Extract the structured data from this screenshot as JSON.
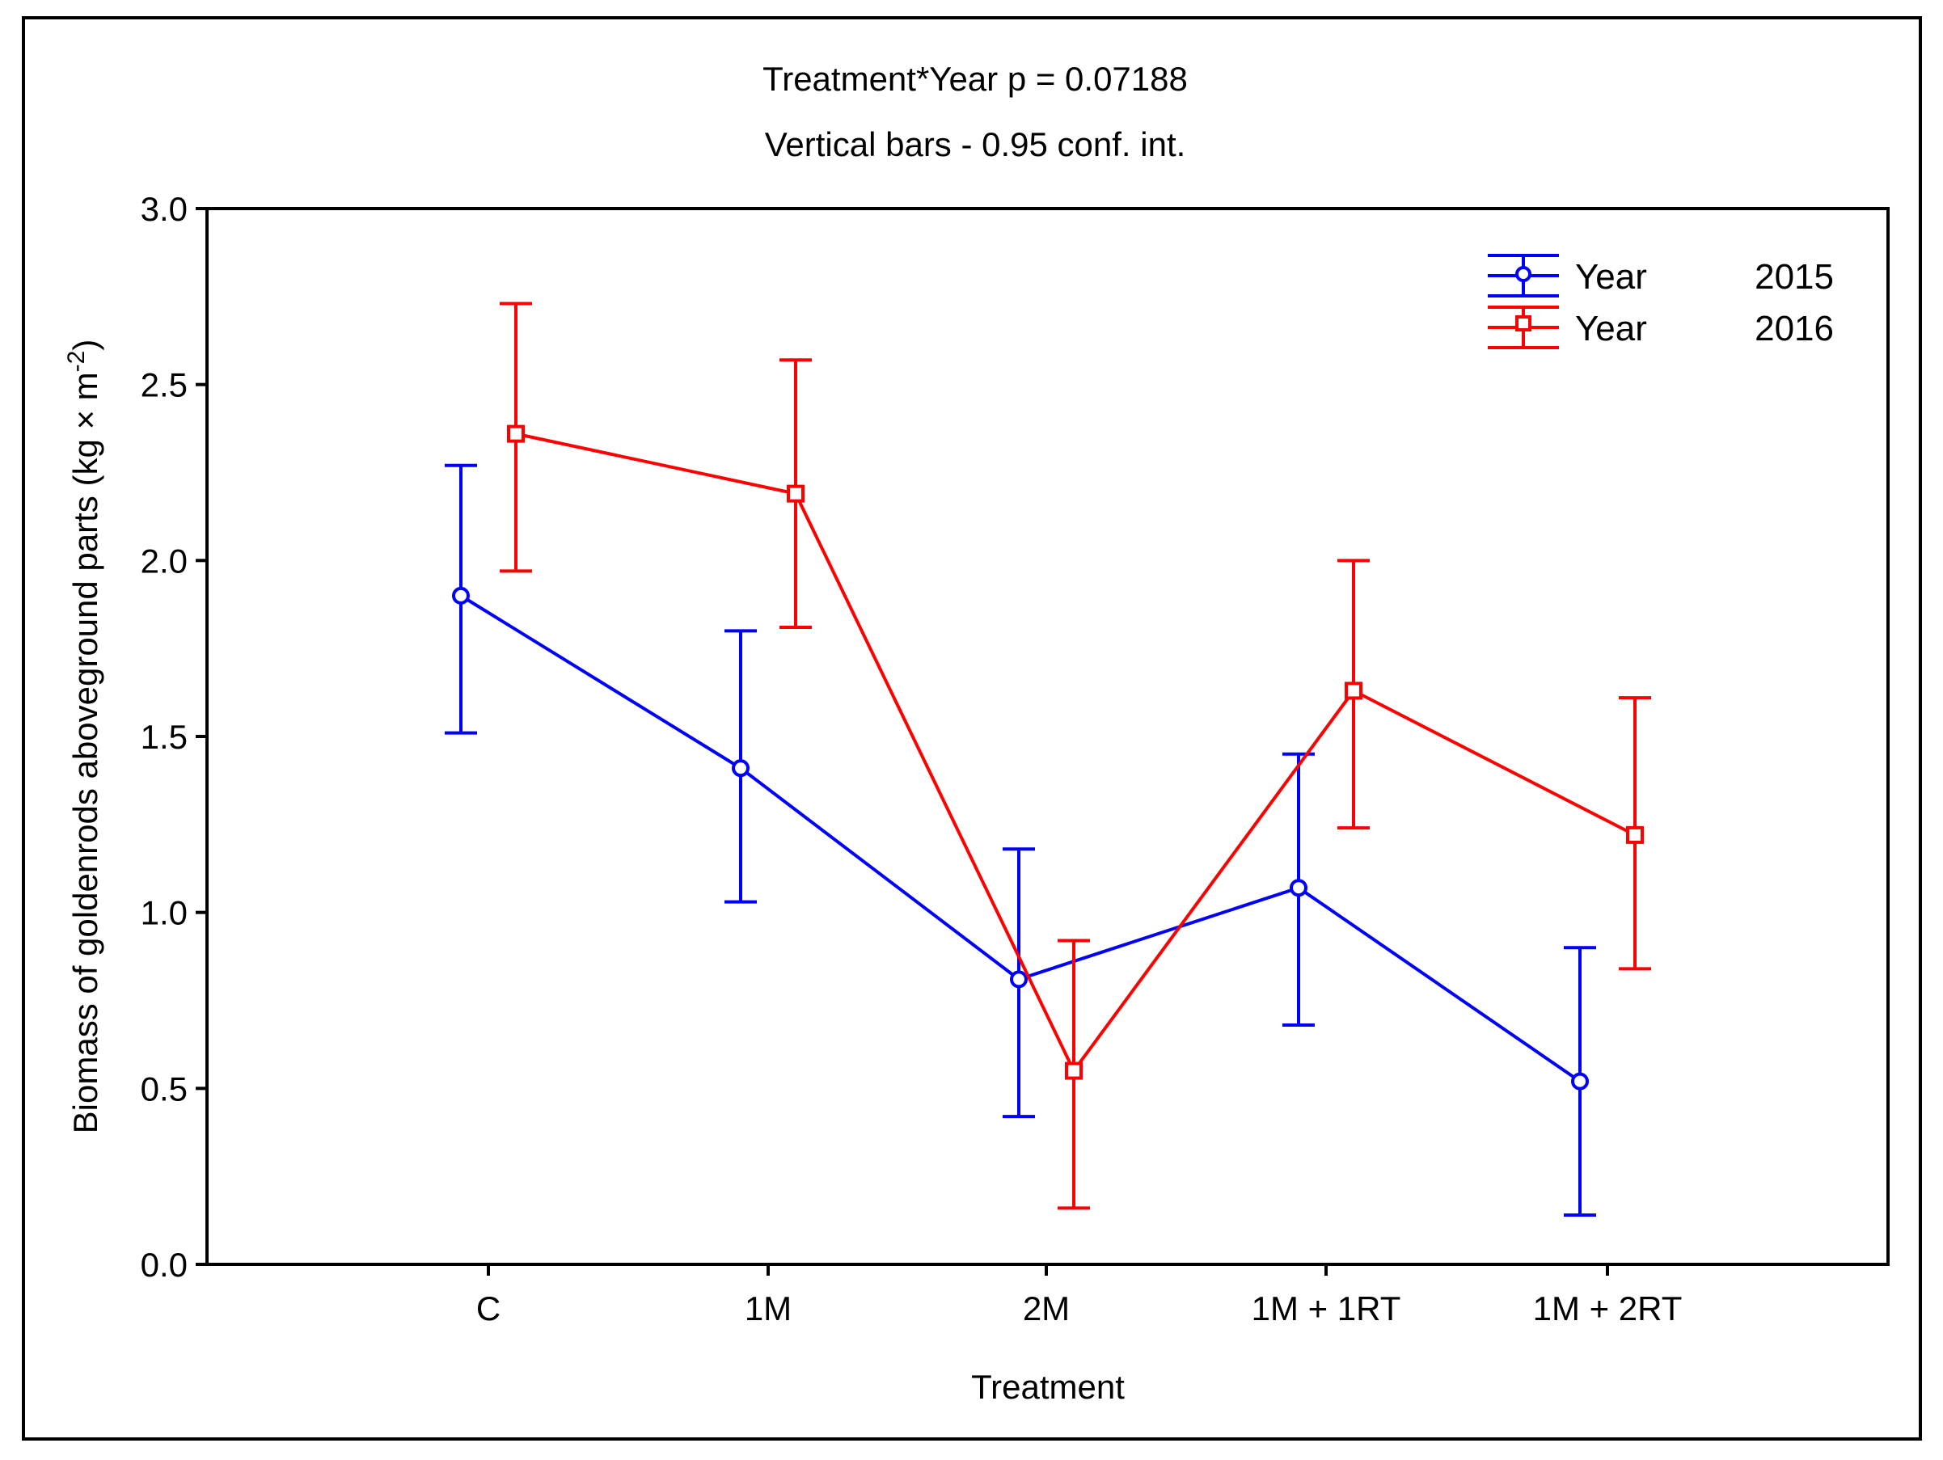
{
  "chart_data": {
    "type": "line",
    "title": "Treatment*Year p = 0.07188",
    "subtitle": "Vertical bars - 0.95 conf. int.",
    "xlabel": "Treatment",
    "ylabel": "Biomass of goldenrods aboveground parts (kg × m",
    "ylabel_sup": "-2",
    "ylabel_close": ")",
    "categories": [
      "C",
      "1M",
      "2M",
      "1M + 1RT",
      "1M + 2RT"
    ],
    "ylim": [
      0.0,
      3.0
    ],
    "yticks": [
      0.0,
      0.5,
      1.0,
      1.5,
      2.0,
      2.5,
      3.0
    ],
    "ytick_labels": [
      "0.0",
      "0.5",
      "1.0",
      "1.5",
      "2.0",
      "2.5",
      "3.0"
    ],
    "series": [
      {
        "name": "Year",
        "year": "2015",
        "color": "#0000ff",
        "marker": "circle",
        "values": [
          1.9,
          1.41,
          0.81,
          1.07,
          0.52
        ],
        "ci_low": [
          1.51,
          1.03,
          0.42,
          0.68,
          0.14
        ],
        "ci_high": [
          2.27,
          1.8,
          1.18,
          1.45,
          0.9
        ]
      },
      {
        "name": "Year",
        "year": "2016",
        "color": "#ff0000",
        "marker": "square",
        "values": [
          2.36,
          2.19,
          0.55,
          1.63,
          1.22
        ],
        "ci_low": [
          1.97,
          1.81,
          0.16,
          1.24,
          0.84
        ],
        "ci_high": [
          2.73,
          2.57,
          0.92,
          2.0,
          1.61
        ]
      }
    ],
    "legend_position": "top-right"
  }
}
